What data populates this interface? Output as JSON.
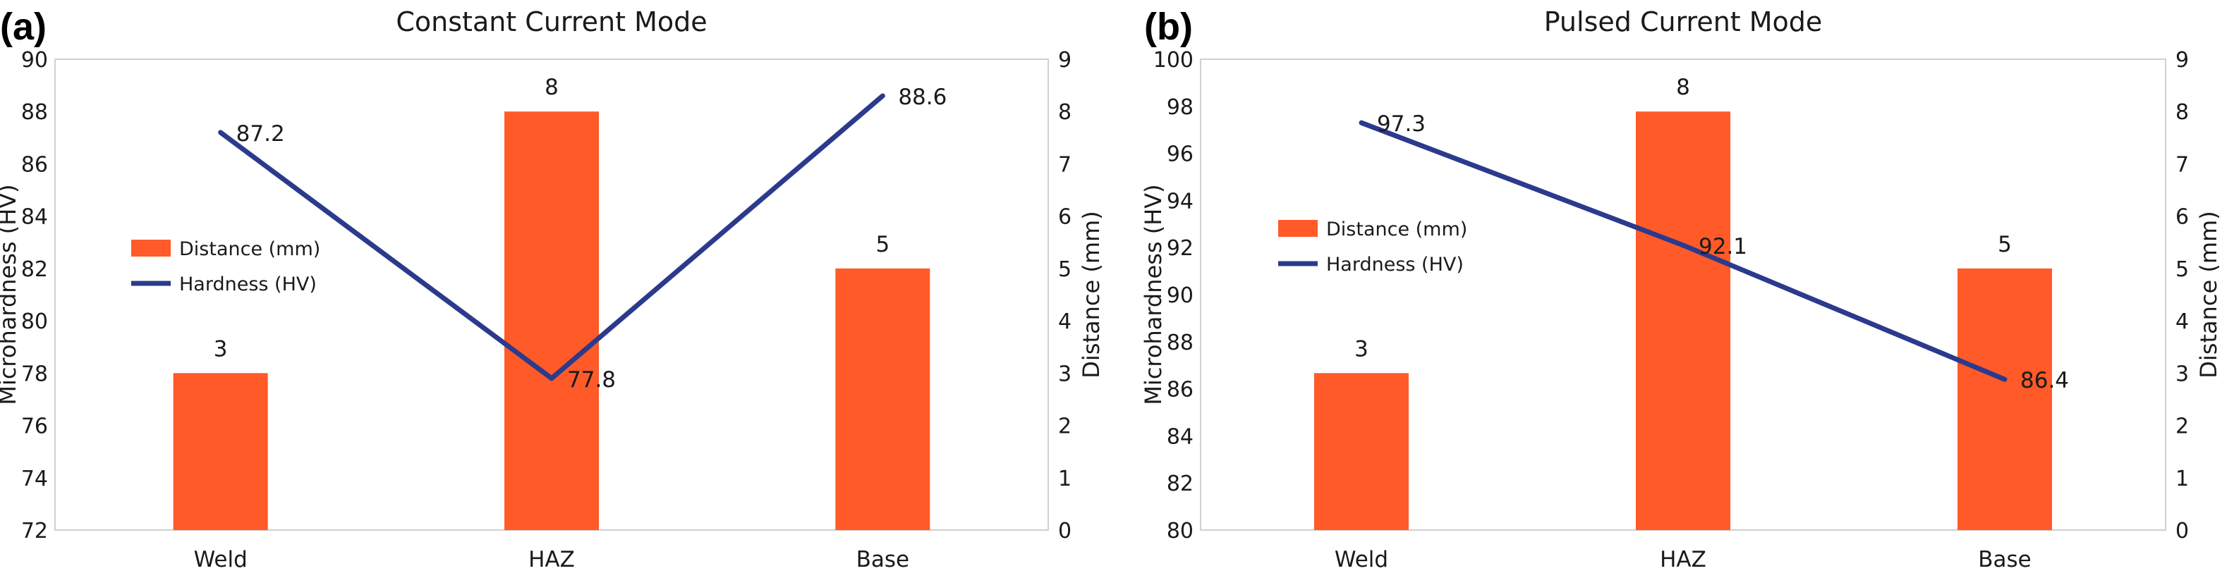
{
  "panels": [
    {
      "label": "(a)"
    },
    {
      "label": "(b)"
    }
  ],
  "chart_data": [
    {
      "type": "bar",
      "title": "Constant Current Mode",
      "categories": [
        "Weld",
        "HAZ",
        "Base"
      ],
      "ylabel": "Microhardness (HV)",
      "y2label": "Distance (mm)",
      "ylim": [
        72,
        90
      ],
      "y_ticks": [
        72,
        74,
        76,
        78,
        80,
        82,
        84,
        86,
        88,
        90
      ],
      "y2lim": [
        0,
        9
      ],
      "y2_ticks": [
        0,
        1,
        2,
        3,
        4,
        5,
        6,
        7,
        8,
        9
      ],
      "legend_position": "middle-left",
      "series": [
        {
          "name": "Distance (mm)",
          "kind": "bar",
          "axis": "right",
          "color": "#ff5a28",
          "values": [
            3,
            8,
            5
          ],
          "labels": [
            "3",
            "8",
            "5"
          ]
        },
        {
          "name": "Hardness (HV)",
          "kind": "line",
          "axis": "left",
          "color": "#2b3a8c",
          "values": [
            87.2,
            77.8,
            88.6
          ],
          "labels": [
            "87.2",
            "77.8",
            "88.6"
          ]
        }
      ]
    },
    {
      "type": "bar",
      "title": "Pulsed Current Mode",
      "categories": [
        "Weld",
        "HAZ",
        "Base"
      ],
      "ylabel": "Microhardness (HV)",
      "y2label": "Distance (mm)",
      "ylim": [
        80,
        100
      ],
      "y_ticks": [
        80,
        82,
        84,
        86,
        88,
        90,
        92,
        94,
        96,
        98,
        100
      ],
      "y2lim": [
        0,
        9
      ],
      "y2_ticks": [
        0,
        1,
        2,
        3,
        4,
        5,
        6,
        7,
        8,
        9
      ],
      "legend_position": "middle-left",
      "series": [
        {
          "name": "Distance (mm)",
          "kind": "bar",
          "axis": "right",
          "color": "#ff5a28",
          "values": [
            3,
            8,
            5
          ],
          "labels": [
            "3",
            "8",
            "5"
          ]
        },
        {
          "name": "Hardness (HV)",
          "kind": "line",
          "axis": "left",
          "color": "#2b3a8c",
          "values": [
            97.3,
            92.1,
            86.4
          ],
          "labels": [
            "97.3",
            "92.1",
            "86.4"
          ]
        }
      ]
    }
  ]
}
